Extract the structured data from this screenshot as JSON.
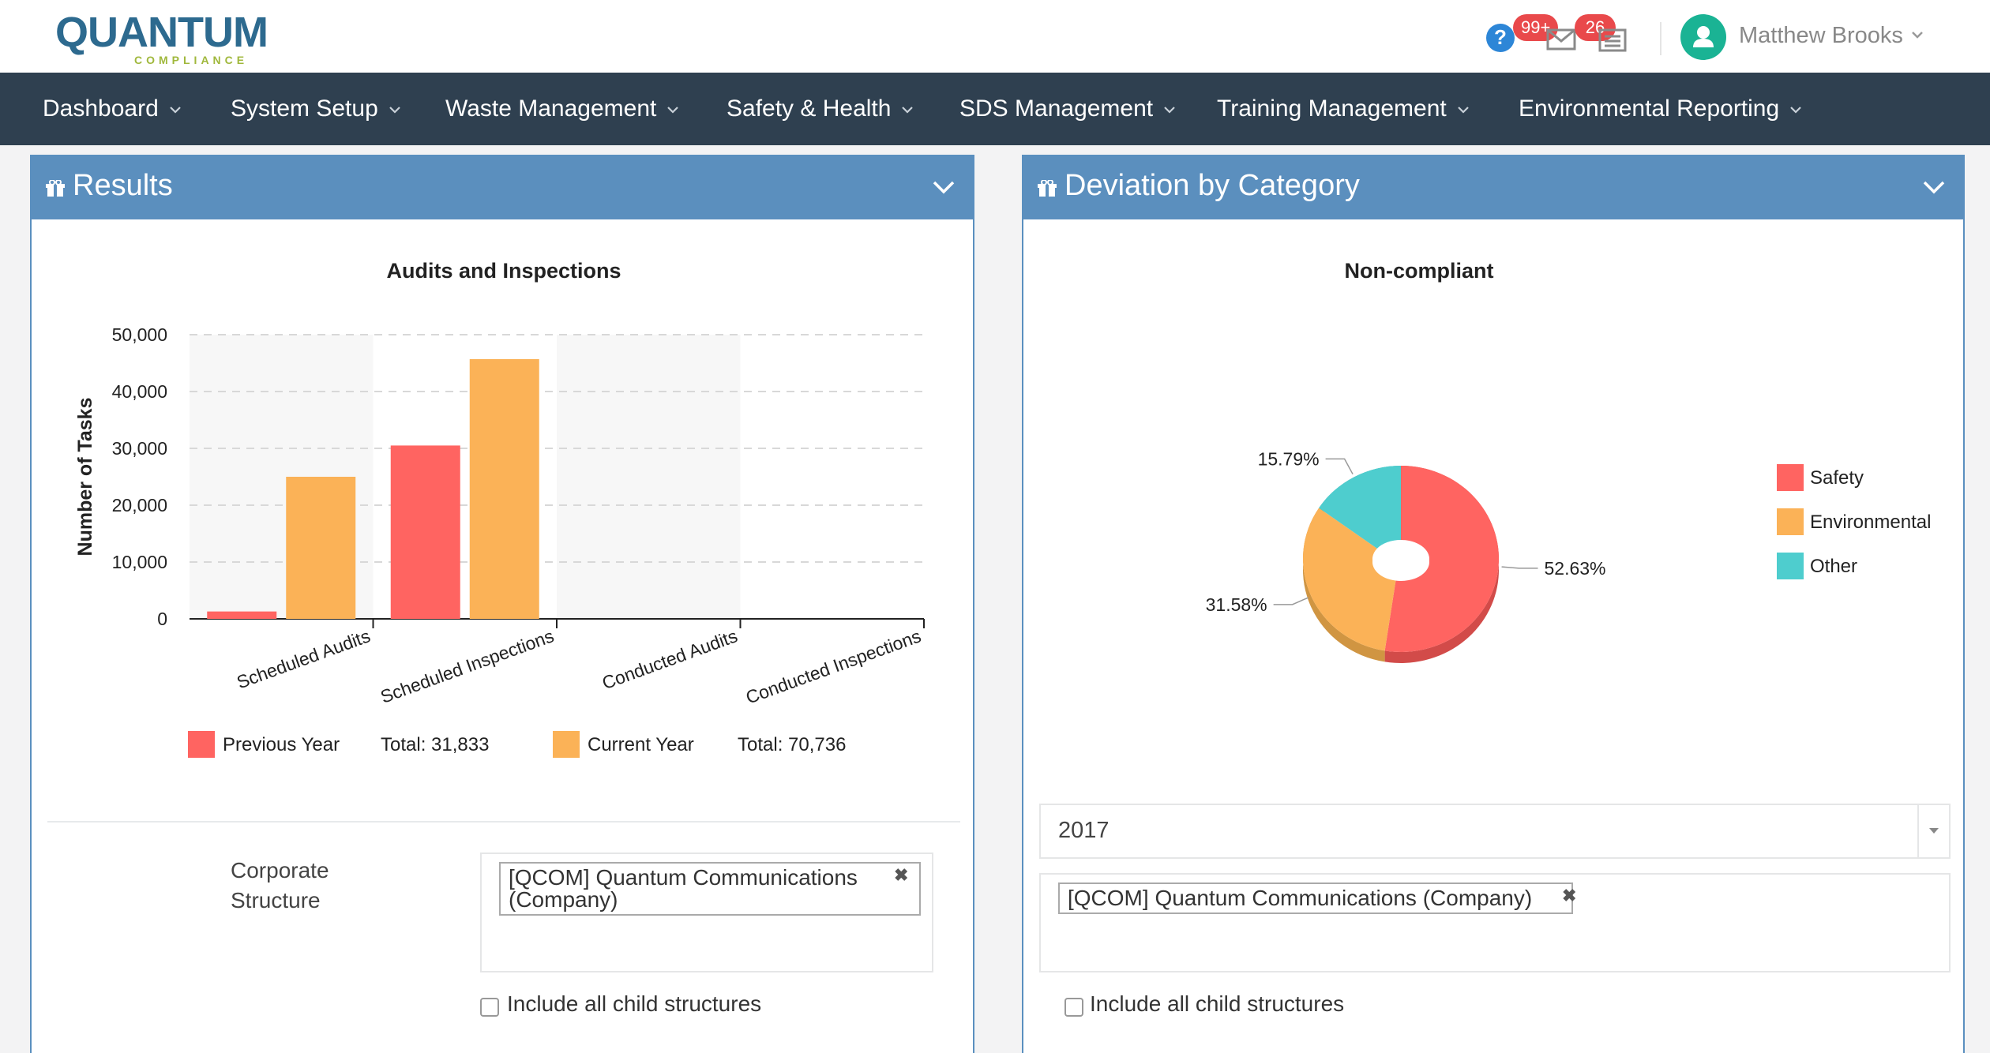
{
  "brand": {
    "logo_word": "QUANTUM",
    "logo_sub": "COMPLIANCE"
  },
  "header": {
    "help_badge": "99+",
    "mail_badge": "26",
    "user_name": "Matthew Brooks",
    "icons": [
      "help-icon",
      "mail-icon",
      "list-icon",
      "user-icon",
      "chevron-down-icon"
    ]
  },
  "nav": {
    "items": [
      {
        "label": "Dashboard"
      },
      {
        "label": "System Setup"
      },
      {
        "label": "Waste Management"
      },
      {
        "label": "Safety & Health"
      },
      {
        "label": "SDS Management"
      },
      {
        "label": "Training Management"
      },
      {
        "label": "Environmental Reporting"
      }
    ]
  },
  "results_panel": {
    "title": "Results",
    "corporate_label": "Corporate Structure",
    "tag": "[QCOM] Quantum Communications (Company)",
    "include_children": "Include all child structures"
  },
  "deviation_panel": {
    "title": "Deviation by Category",
    "year_select": "2017",
    "tag": "[QCOM] Quantum Communications (Company)",
    "include_children": "Include all child structures"
  },
  "colors": {
    "previous_year": "#ff6461",
    "current_year": "#fbb257",
    "other": "#4ecdce",
    "panel_head": "#5b8fbe",
    "navbar": "#2f4050"
  },
  "chart_data": [
    {
      "type": "bar",
      "title": "Audits and Inspections",
      "xlabel": "",
      "ylabel": "Number of Tasks",
      "ylim": [
        0,
        50000
      ],
      "yticks": [
        "0",
        "10,000",
        "20,000",
        "30,000",
        "40,000",
        "50,000"
      ],
      "categories": [
        "Scheduled Audits",
        "Scheduled Inspections",
        "Conducted Audits",
        "Conducted Inspections"
      ],
      "series": [
        {
          "name": "Previous Year",
          "values": [
            1300,
            30500,
            0,
            0
          ],
          "total_label": "Total: 31,833"
        },
        {
          "name": "Current Year",
          "values": [
            25000,
            45700,
            0,
            0
          ],
          "total_label": "Total: 70,736"
        }
      ],
      "grid": true,
      "legend": "bottom"
    },
    {
      "type": "pie",
      "title": "Non-compliant",
      "slices": [
        {
          "name": "Safety",
          "value": 52.63,
          "label": "52.63%"
        },
        {
          "name": "Environmental",
          "value": 31.58,
          "label": "31.58%"
        },
        {
          "name": "Other",
          "value": 15.79,
          "label": "15.79%"
        }
      ],
      "legend": "right"
    }
  ]
}
